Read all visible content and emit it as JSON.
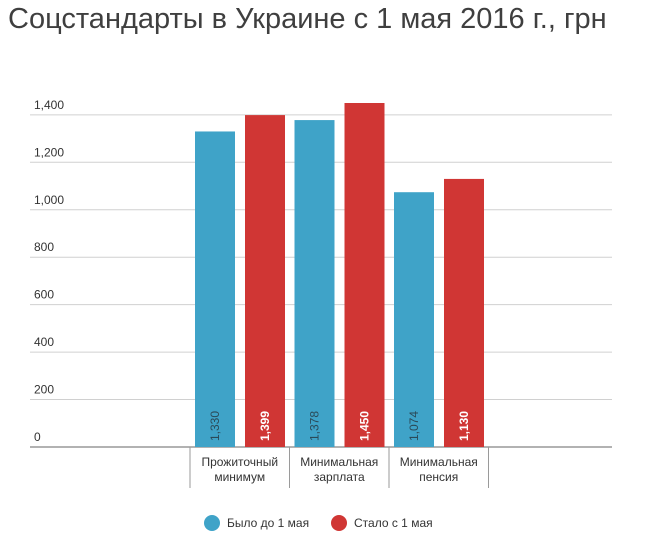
{
  "chart_data": {
    "type": "bar",
    "title": "Соцстандарты в Украине с 1 мая 2016 г., грн",
    "categories": [
      [
        "Прожиточный",
        "минимум"
      ],
      [
        "Минимальная",
        "зарплата"
      ],
      [
        "Минимальная",
        "пенсия"
      ]
    ],
    "series": [
      {
        "name": "Было до 1 мая",
        "color": "#3fa3c8",
        "values": [
          1330,
          1378,
          1074
        ],
        "labels": [
          "1,330",
          "1,378",
          "1,074"
        ]
      },
      {
        "name": "Стало с 1 мая",
        "color": "#d03634",
        "values": [
          1399,
          1450,
          1130
        ],
        "labels": [
          "1,399",
          "1,450",
          "1,130"
        ]
      }
    ],
    "yticks": [
      {
        "value": 0,
        "label": "0"
      },
      {
        "value": 200,
        "label": "200"
      },
      {
        "value": 400,
        "label": "400"
      },
      {
        "value": 600,
        "label": "600"
      },
      {
        "value": 800,
        "label": "800"
      },
      {
        "value": 1000,
        "label": "1,000"
      },
      {
        "value": 1200,
        "label": "1,200"
      },
      {
        "value": 1400,
        "label": "1,400"
      }
    ],
    "ylim": [
      0,
      1450
    ],
    "grid": true,
    "legend_position": "bottom-center"
  }
}
